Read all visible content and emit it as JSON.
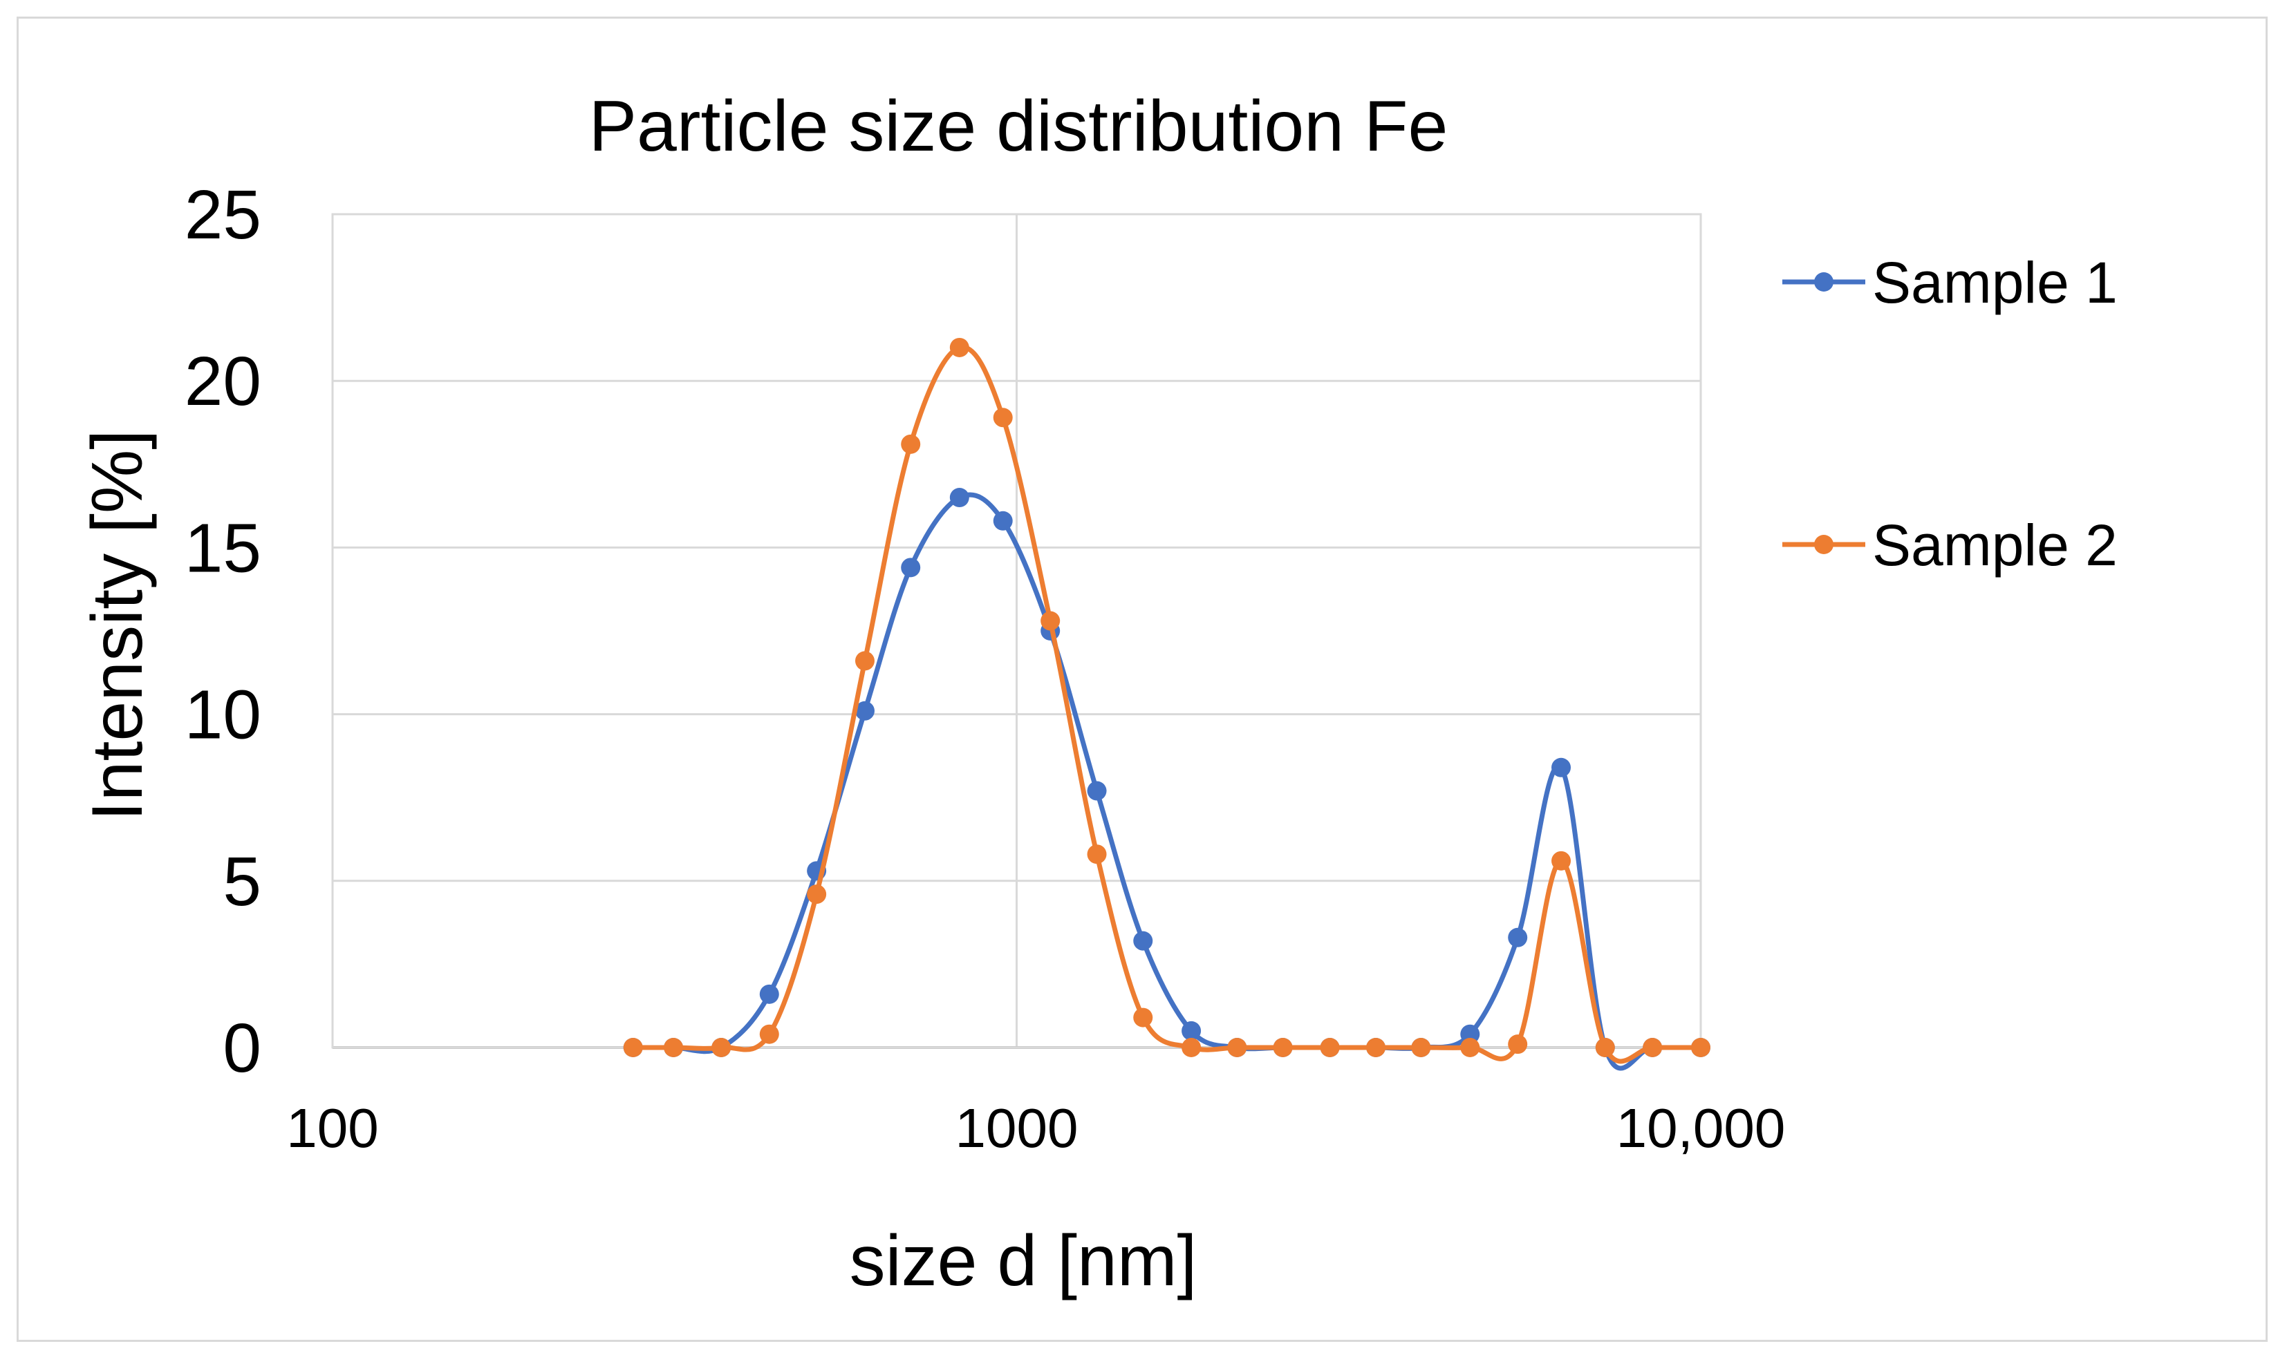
{
  "chart_data": {
    "type": "line",
    "title": "Particle size distribution Fe",
    "xlabel": "size d [nm]",
    "ylabel": "Intensity [%]",
    "xscale": "log",
    "xlim": [
      100,
      10000
    ],
    "ylim": [
      0,
      25
    ],
    "y_ticks": [
      0,
      5,
      10,
      15,
      20,
      25
    ],
    "y_tick_labels": [
      "0",
      "5",
      "10",
      "15",
      "20",
      "25"
    ],
    "x_ticks": [
      100,
      1000,
      10000
    ],
    "x_tick_labels": [
      "100",
      "1000",
      "10,000"
    ],
    "grid": true,
    "legend_position": "right",
    "series": [
      {
        "name": "Sample 1",
        "color": "#4472C4",
        "x": [
          275,
          315,
          370,
          435,
          510,
          600,
          700,
          825,
          955,
          1120,
          1310,
          1530,
          1800,
          2100,
          2450,
          2870,
          3350,
          3900,
          4600,
          5400,
          6250,
          7250,
          8500,
          10000
        ],
        "values": [
          0,
          0,
          0,
          1.6,
          5.3,
          10.1,
          14.4,
          16.5,
          15.8,
          12.5,
          7.7,
          3.2,
          0.5,
          0,
          0,
          0,
          0,
          0,
          0.4,
          3.3,
          8.4,
          0,
          0,
          0
        ]
      },
      {
        "name": "Sample 2",
        "color": "#ED7D31",
        "x": [
          275,
          315,
          370,
          435,
          510,
          600,
          700,
          825,
          955,
          1120,
          1310,
          1530,
          1800,
          2100,
          2450,
          2870,
          3350,
          3900,
          4600,
          5400,
          6250,
          7250,
          8500,
          10000
        ],
        "values": [
          0,
          0,
          0,
          0.4,
          4.6,
          11.6,
          18.1,
          21.0,
          18.9,
          12.8,
          5.8,
          0.9,
          0,
          0,
          0,
          0,
          0,
          0,
          0,
          0.1,
          5.6,
          0,
          0,
          0
        ]
      }
    ]
  }
}
